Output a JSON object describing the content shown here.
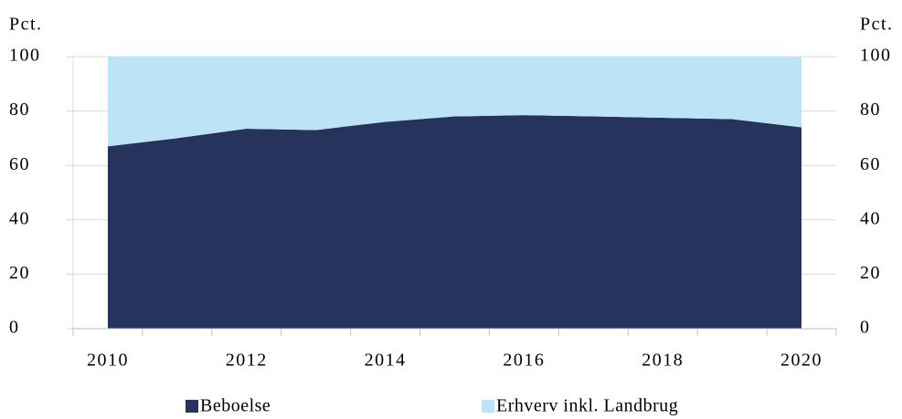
{
  "chart_data": {
    "type": "area",
    "stacked": true,
    "y_label": "Pct.",
    "y2_label": "Pct.",
    "categories": [
      "2010",
      null,
      "2012",
      null,
      "2014",
      null,
      "2016",
      null,
      "2018",
      null,
      "2020"
    ],
    "series": [
      {
        "name": "Beboelse",
        "color": "#26345d",
        "values": [
          67,
          70,
          73.5,
          73,
          76,
          78,
          78.5,
          78,
          77.5,
          77,
          74
        ]
      },
      {
        "name": "Erhverv inkl. Landbrug",
        "color": "#bde3f6",
        "values": [
          33,
          30,
          26.5,
          27,
          24,
          22,
          21.5,
          22,
          22.5,
          23,
          26
        ]
      }
    ],
    "ylim": [
      0,
      100
    ],
    "yticks": [
      0,
      20,
      40,
      60,
      80,
      100
    ],
    "y2lim": [
      0,
      100
    ],
    "y2ticks": [
      0,
      20,
      40,
      60,
      80,
      100
    ],
    "grid": true
  }
}
